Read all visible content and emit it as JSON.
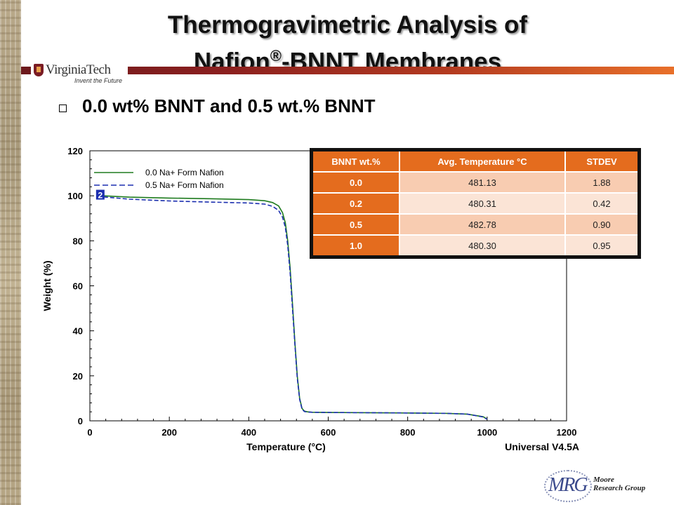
{
  "slide": {
    "title_line1": "Thermogravimetric Analysis of",
    "title_line2_a": "Nafion",
    "title_line2_sup": "®",
    "title_line2_b": "-BNNT Membranes",
    "bullet_text": "0.0 wt% BNNT and 0.5 wt.% BNNT",
    "logo_text": "VirginiaTech",
    "logo_tagline": "Invent the Future",
    "footer_logo_letters": "MRG",
    "footer_line1": "Moore",
    "footer_line2": "Research Group"
  },
  "colors": {
    "series_0": "#1e7b1e",
    "series_1": "#1c2fb0",
    "table_header": "#e46c1e",
    "banner_start": "#6d1a1d",
    "banner_end": "#e8702a"
  },
  "table": {
    "headers": [
      "BNNT wt.%",
      "Avg. Temperature °C",
      "STDEV"
    ],
    "rows": [
      [
        "0.0",
        "481.13",
        "1.88"
      ],
      [
        "0.2",
        "480.31",
        "0.42"
      ],
      [
        "0.5",
        "482.78",
        "0.90"
      ],
      [
        "1.0",
        "480.30",
        "0.95"
      ]
    ]
  },
  "chart_data": {
    "type": "line",
    "title": "",
    "xlabel": "Temperature (°C)",
    "ylabel": "Weight (%)",
    "xlim": [
      0,
      1200
    ],
    "ylim": [
      0,
      120
    ],
    "xticks": [
      0,
      200,
      400,
      600,
      800,
      1000,
      1200
    ],
    "yticks": [
      0,
      20,
      40,
      60,
      80,
      100,
      120
    ],
    "grid": false,
    "legend_position": "top-left",
    "corner_label": "Universal V4.5A",
    "marker_label": "2",
    "series": [
      {
        "name": "0.0 Na+ Form Nafion",
        "style": "solid",
        "x": [
          35,
          100,
          200,
          300,
          400,
          440,
          460,
          475,
          485,
          492,
          498,
          504,
          510,
          516,
          522,
          528,
          534,
          540,
          548,
          560,
          600,
          700,
          800,
          900,
          950,
          990,
          1000
        ],
        "y": [
          100,
          99.4,
          99.0,
          98.7,
          98.3,
          97.8,
          97.0,
          95.5,
          92.5,
          88,
          80,
          68,
          52,
          35,
          20,
          10,
          5.5,
          4.3,
          4.0,
          3.8,
          3.7,
          3.6,
          3.5,
          3.3,
          3.0,
          1.8,
          0.8
        ]
      },
      {
        "name": "0.5 Na+ Form Nafion",
        "style": "dashed",
        "x": [
          35,
          100,
          200,
          300,
          400,
          440,
          460,
          475,
          485,
          492,
          498,
          504,
          510,
          516,
          522,
          528,
          534,
          540,
          548,
          560,
          600,
          700,
          800,
          900,
          950,
          990,
          1000
        ],
        "y": [
          99.5,
          98.5,
          97.7,
          97.2,
          96.8,
          96.3,
          95.3,
          93.5,
          90.5,
          86,
          78,
          66,
          50,
          34,
          19,
          9.5,
          5.2,
          4.1,
          3.9,
          3.8,
          3.7,
          3.6,
          3.5,
          3.3,
          3.0,
          1.7,
          0.7
        ]
      }
    ]
  }
}
